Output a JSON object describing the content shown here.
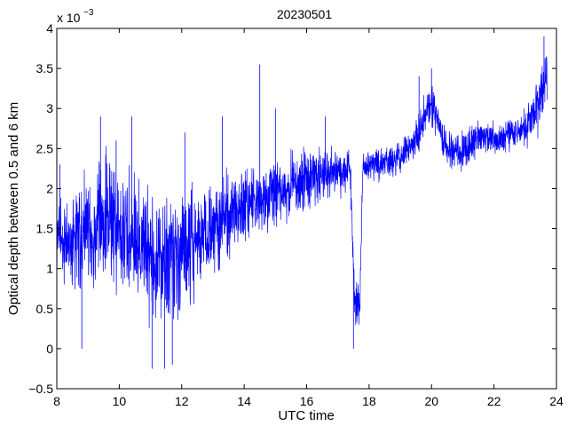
{
  "chart_data": {
    "type": "line",
    "title": "20230501",
    "xlabel": "UTC time",
    "ylabel": "Optical depth between 0.5 and 6 km",
    "y_multiplier_label": "x 10",
    "y_multiplier_exponent": "−3",
    "xlim": [
      8,
      24
    ],
    "ylim": [
      -0.5,
      4
    ],
    "x_ticks": [
      8,
      10,
      12,
      14,
      16,
      18,
      20,
      22,
      24
    ],
    "x_tick_labels": [
      "8",
      "10",
      "12",
      "14",
      "16",
      "18",
      "20",
      "22",
      "24"
    ],
    "y_ticks": [
      -0.5,
      0,
      0.5,
      1,
      1.5,
      2,
      2.5,
      3,
      3.5,
      4
    ],
    "y_tick_labels": [
      "−0.5",
      "0",
      "0.5",
      "1",
      "1.5",
      "2",
      "2.5",
      "3",
      "3.5",
      "4"
    ],
    "grid": false,
    "line_color": "#0000ff",
    "series": [
      {
        "envelope": [
          {
            "x": 8.0,
            "low": 0.7,
            "high": 2.2
          },
          {
            "x": 8.5,
            "low": 0.5,
            "high": 2.1
          },
          {
            "x": 9.0,
            "low": 0.6,
            "high": 2.4
          },
          {
            "x": 9.5,
            "low": 0.5,
            "high": 2.6
          },
          {
            "x": 10.0,
            "low": 0.4,
            "high": 2.5
          },
          {
            "x": 10.5,
            "low": 0.3,
            "high": 2.4
          },
          {
            "x": 11.0,
            "low": 0.1,
            "high": 2.2
          },
          {
            "x": 11.5,
            "low": 0.0,
            "high": 2.2
          },
          {
            "x": 12.0,
            "low": 0.2,
            "high": 2.3
          },
          {
            "x": 12.5,
            "low": 0.5,
            "high": 2.2
          },
          {
            "x": 13.0,
            "low": 0.7,
            "high": 2.3
          },
          {
            "x": 13.5,
            "low": 0.9,
            "high": 2.4
          },
          {
            "x": 14.0,
            "low": 1.1,
            "high": 2.5
          },
          {
            "x": 14.5,
            "low": 1.3,
            "high": 2.5
          },
          {
            "x": 15.0,
            "low": 1.4,
            "high": 2.5
          },
          {
            "x": 15.5,
            "low": 1.5,
            "high": 2.6
          },
          {
            "x": 16.0,
            "low": 1.6,
            "high": 2.6
          },
          {
            "x": 16.5,
            "low": 1.7,
            "high": 2.6
          },
          {
            "x": 17.0,
            "low": 1.8,
            "high": 2.6
          },
          {
            "x": 17.4,
            "low": 1.85,
            "high": 2.65
          },
          {
            "x": 17.55,
            "low": 0.05,
            "high": 0.9
          },
          {
            "x": 17.7,
            "low": 0.1,
            "high": 0.9
          },
          {
            "x": 17.8,
            "low": 2.0,
            "high": 2.5
          },
          {
            "x": 18.0,
            "low": 2.0,
            "high": 2.6
          },
          {
            "x": 18.5,
            "low": 2.05,
            "high": 2.6
          },
          {
            "x": 19.0,
            "low": 2.1,
            "high": 2.7
          },
          {
            "x": 19.5,
            "low": 2.3,
            "high": 2.9
          },
          {
            "x": 19.8,
            "low": 2.6,
            "high": 3.3
          },
          {
            "x": 20.0,
            "low": 2.7,
            "high": 3.4
          },
          {
            "x": 20.2,
            "low": 2.5,
            "high": 3.2
          },
          {
            "x": 20.5,
            "low": 2.2,
            "high": 2.8
          },
          {
            "x": 21.0,
            "low": 2.1,
            "high": 2.8
          },
          {
            "x": 21.5,
            "low": 2.3,
            "high": 2.9
          },
          {
            "x": 22.0,
            "low": 2.3,
            "high": 2.9
          },
          {
            "x": 22.5,
            "low": 2.4,
            "high": 3.0
          },
          {
            "x": 23.0,
            "low": 2.4,
            "high": 3.1
          },
          {
            "x": 23.5,
            "low": 2.6,
            "high": 3.6
          },
          {
            "x": 23.7,
            "low": 3.0,
            "high": 3.8
          }
        ],
        "spikes": [
          {
            "x": 8.1,
            "y": 2.3
          },
          {
            "x": 8.8,
            "y": 0.0
          },
          {
            "x": 9.4,
            "y": 2.9
          },
          {
            "x": 9.9,
            "y": 2.6
          },
          {
            "x": 10.4,
            "y": 2.9
          },
          {
            "x": 11.05,
            "y": -0.25
          },
          {
            "x": 11.45,
            "y": -0.25
          },
          {
            "x": 11.7,
            "y": -0.2
          },
          {
            "x": 12.1,
            "y": 2.7
          },
          {
            "x": 13.3,
            "y": 2.9
          },
          {
            "x": 14.5,
            "y": 3.55
          },
          {
            "x": 15.0,
            "y": 3.0
          },
          {
            "x": 16.6,
            "y": 2.9
          },
          {
            "x": 17.5,
            "y": 0.0
          },
          {
            "x": 19.6,
            "y": 3.4
          },
          {
            "x": 20.0,
            "y": 3.5
          },
          {
            "x": 23.6,
            "y": 3.9
          }
        ]
      }
    ]
  }
}
